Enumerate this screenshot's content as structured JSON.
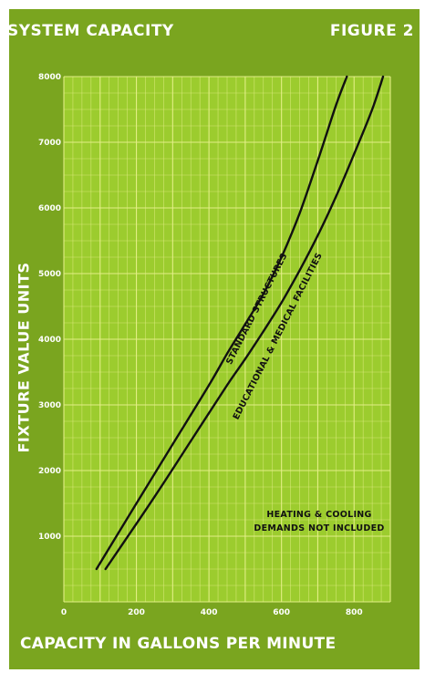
{
  "chart_data": {
    "type": "line",
    "title": "SYSTEM CAPACITY",
    "figure_label": "FIGURE 2",
    "xlabel": "CAPACITY IN GALLONS PER MINUTE",
    "ylabel": "FIXTURE VALUE UNITS",
    "xlim": [
      0,
      900
    ],
    "ylim": [
      0,
      8000
    ],
    "x_ticks": [
      "0",
      "200",
      "400",
      "600",
      "800"
    ],
    "y_ticks": [
      "1000",
      "2000",
      "3000",
      "4000",
      "5000",
      "6000",
      "7000",
      "8000"
    ],
    "grid": true,
    "colors": {
      "background": "#7aa51f",
      "plot": "#9ccc2e",
      "grid": "#e6f08a",
      "lines": "#111111",
      "text": "#ffffff"
    },
    "series": [
      {
        "name": "STANDARD STRUCTURES",
        "x": [
          90,
          200,
          300,
          400,
          450,
          500,
          550,
          600,
          650,
          700,
          750,
          780
        ],
        "y": [
          500,
          1500,
          2400,
          3300,
          3780,
          4230,
          4690,
          5250,
          5920,
          6720,
          7560,
          8000
        ]
      },
      {
        "name": "EDUCATIONAL & MEDICAL FACILITIES",
        "x": [
          115,
          250,
          350,
          450,
          500,
          550,
          600,
          650,
          700,
          750,
          800,
          850,
          880
        ],
        "y": [
          500,
          1600,
          2450,
          3300,
          3700,
          4120,
          4560,
          5050,
          5580,
          6170,
          6820,
          7500,
          8000
        ]
      }
    ],
    "annotation": [
      "HEATING & COOLING",
      "DEMANDS NOT INCLUDED"
    ]
  }
}
